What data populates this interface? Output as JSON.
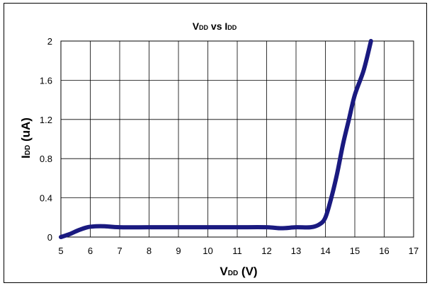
{
  "chart_data": {
    "type": "line",
    "title": {
      "main": "V",
      "sub": "DD",
      "mid": " vs I",
      "sub2": "DD"
    },
    "xlabel": {
      "main": "V",
      "sub": "DD",
      "rest": " (V)"
    },
    "ylabel": {
      "main": "I",
      "sub": "DD",
      "rest": " (uA)"
    },
    "xlim": [
      5,
      17
    ],
    "ylim": [
      0,
      2
    ],
    "x_ticks": [
      "5",
      "6",
      "7",
      "8",
      "9",
      "10",
      "11",
      "12",
      "13",
      "14",
      "15",
      "16",
      "17"
    ],
    "y_ticks": [
      "0",
      "0.4",
      "0.8",
      "1.2",
      "1.6",
      "2"
    ],
    "grid": true,
    "series": [
      {
        "color": "#1a1a80",
        "x": [
          5.0,
          5.3,
          5.6,
          5.9,
          6.2,
          6.5,
          7.0,
          8.0,
          9.0,
          10.0,
          11.0,
          12.0,
          12.5,
          13.0,
          13.5,
          13.8,
          14.0,
          14.2,
          14.4,
          14.6,
          14.8,
          15.0,
          15.3,
          15.55
        ],
        "y": [
          0.0,
          0.03,
          0.07,
          0.1,
          0.11,
          0.11,
          0.1,
          0.1,
          0.1,
          0.1,
          0.1,
          0.1,
          0.09,
          0.1,
          0.1,
          0.13,
          0.2,
          0.4,
          0.65,
          0.95,
          1.2,
          1.45,
          1.7,
          2.0
        ]
      }
    ]
  }
}
